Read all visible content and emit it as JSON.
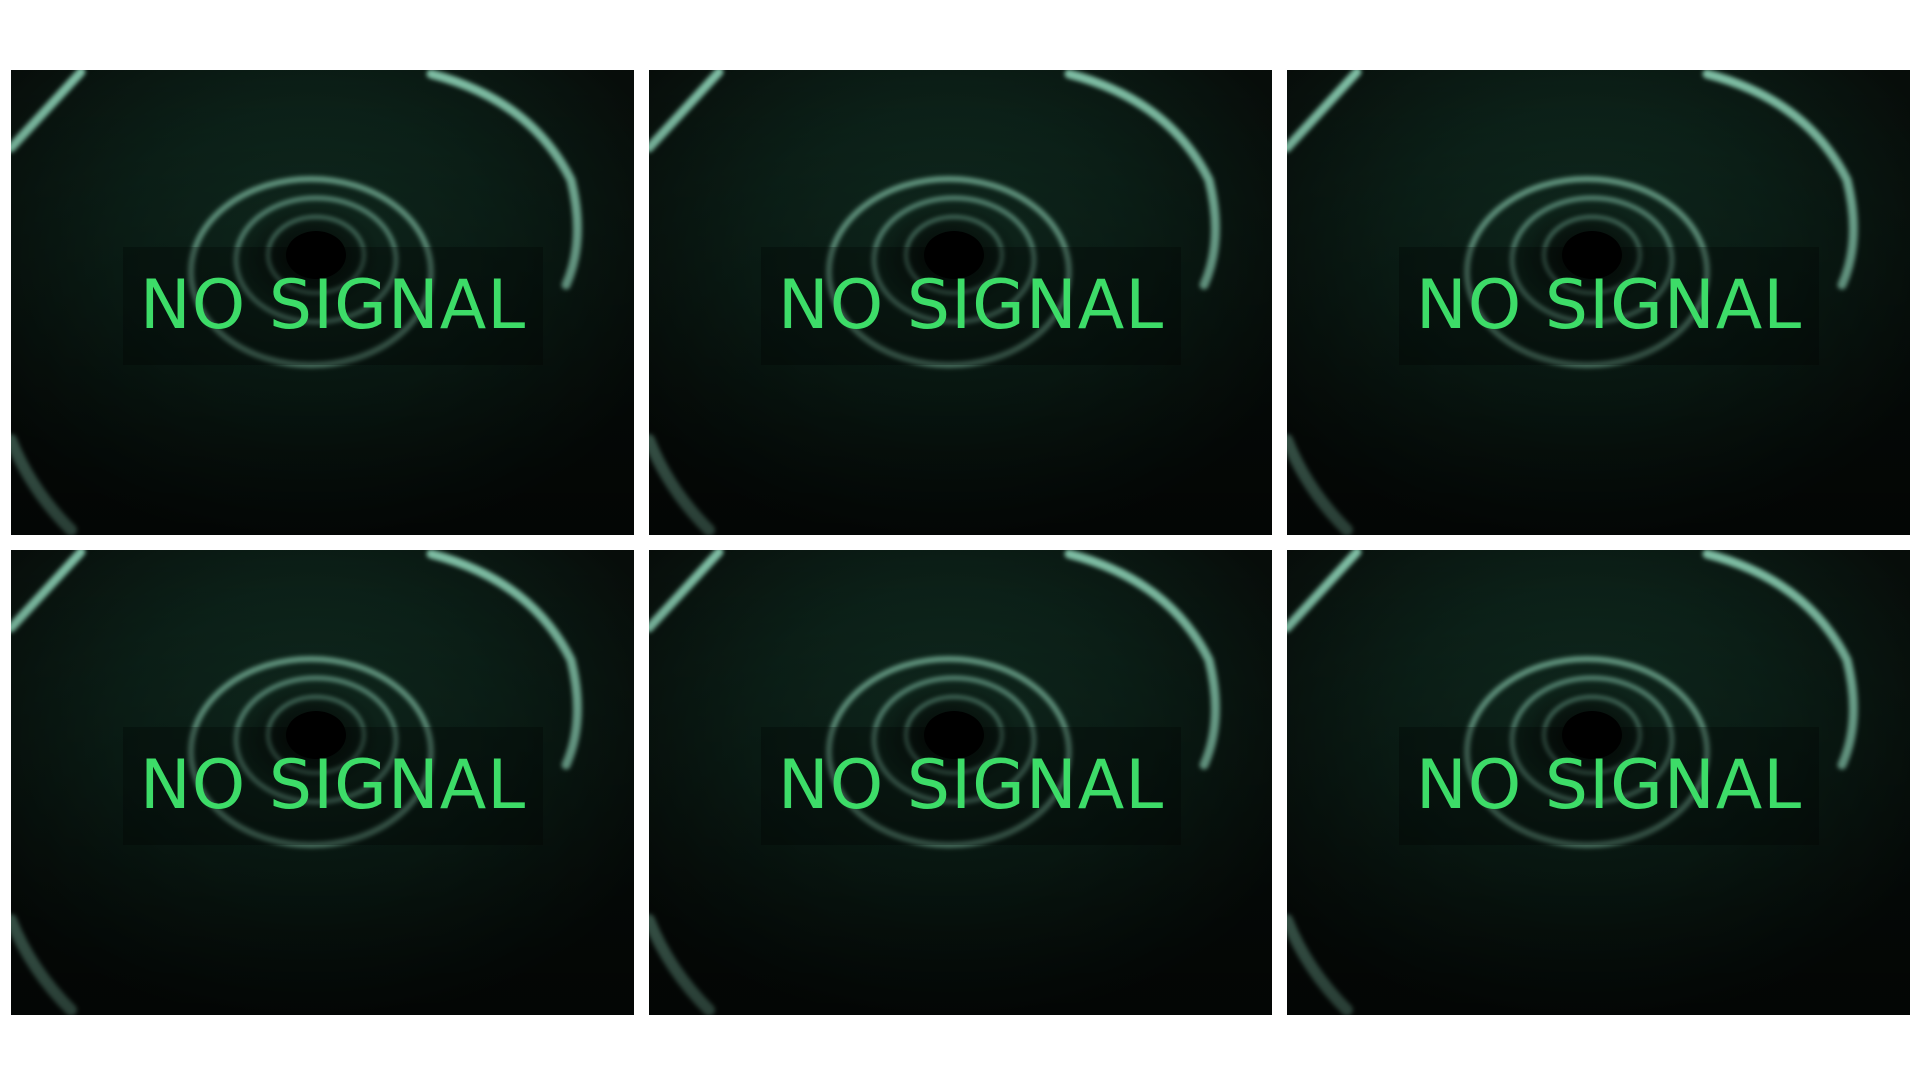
{
  "feeds": [
    {
      "status": "NO SIGNAL"
    },
    {
      "status": "NO SIGNAL"
    },
    {
      "status": "NO SIGNAL"
    },
    {
      "status": "NO SIGNAL"
    },
    {
      "status": "NO SIGNAL"
    },
    {
      "status": "NO SIGNAL"
    }
  ],
  "colors": {
    "page_background": "#ffffff",
    "feed_background": "#0a130f",
    "status_text": "#3ddc68",
    "tunnel_ring": "#7fbfa5"
  }
}
